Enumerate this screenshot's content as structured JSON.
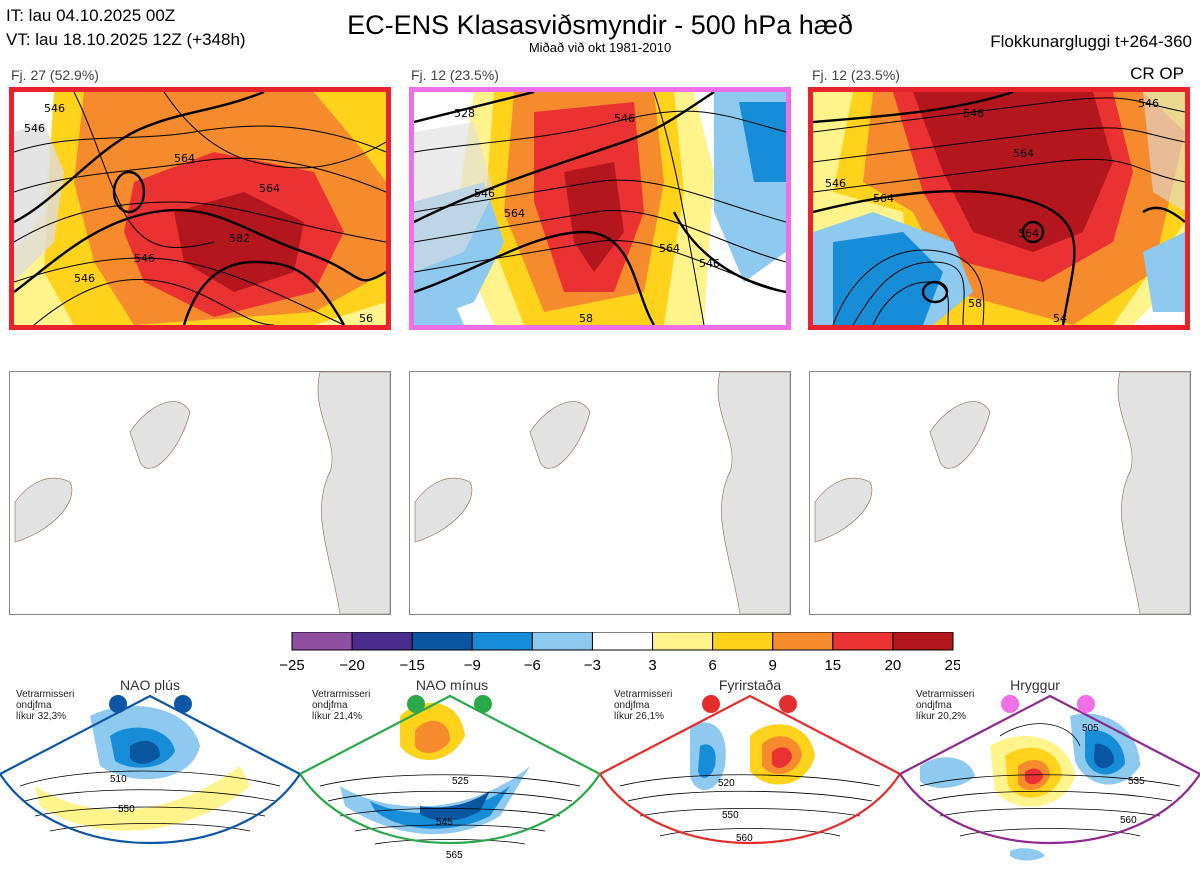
{
  "header": {
    "it": "IT: lau 04.10.2025 00Z",
    "vt": "VT: lau 18.10.2025 12Z  (+348h)",
    "title": "EC-ENS Klasasviðsmyndir - 500 hPa hæð",
    "subtitle": "Miðað við okt 1981-2010",
    "window": "Flokkunargluggi t+264-360",
    "cr_op": "CR OP"
  },
  "panels": [
    {
      "label": "Fj. 27 (52.9%)",
      "border_color": "#e8232b",
      "contour_labels": [
        "546",
        "546",
        "564",
        "564",
        "582",
        "546",
        "546",
        "56"
      ]
    },
    {
      "label": "Fj. 12 (23.5%)",
      "border_color": "#ee6fe6",
      "contour_labels": [
        "528",
        "546",
        "546",
        "564",
        "564",
        "546",
        "58"
      ]
    },
    {
      "label": "Fj. 12 (23.5%)",
      "border_color": "#e8232b",
      "contour_labels": [
        "546",
        "546",
        "564",
        "564",
        "564",
        "546",
        "54",
        "58"
      ]
    }
  ],
  "colorbar": {
    "ticks": [
      "−25",
      "−20",
      "−15",
      "−9",
      "−6",
      "−3",
      "3",
      "6",
      "9",
      "15",
      "20",
      "25"
    ],
    "colors": [
      "#8e4f9f",
      "#4a2c8f",
      "#0a56a0",
      "#168dd6",
      "#8ec9ef",
      "#ffffff",
      "#fff38c",
      "#ffd21c",
      "#f58b2c",
      "#eb3232",
      "#b3161d"
    ]
  },
  "regimes": [
    {
      "name": "NAO plús",
      "side": [
        "Vetrarmisseri",
        "ondjfma",
        "líkur 32,3%"
      ],
      "border": "#0d56a6",
      "dot": "#0d56a6",
      "labels": [
        "510",
        "550"
      ]
    },
    {
      "name": "NAO mínus",
      "side": [
        "Vetrarmisseri",
        "ondjfma",
        "líkur 21,4%"
      ],
      "border": "#2aa84a",
      "dot": "#2aa84a",
      "labels": [
        "525",
        "545",
        "565"
      ]
    },
    {
      "name": "Fyrirstaða",
      "side": [
        "Vetrarmisseri",
        "ondjfma",
        "líkur 26,1%"
      ],
      "border": "#e52d2d",
      "dot": "#e52d2d",
      "labels": [
        "520",
        "550",
        "560"
      ]
    },
    {
      "name": "Hryggur",
      "side": [
        "Vetrarmisseri",
        "ondjfma",
        "líkur 20,2%"
      ],
      "border": "#8e2a8f",
      "dot": "#ee6fe6",
      "labels": [
        "505",
        "535",
        "560"
      ]
    }
  ]
}
